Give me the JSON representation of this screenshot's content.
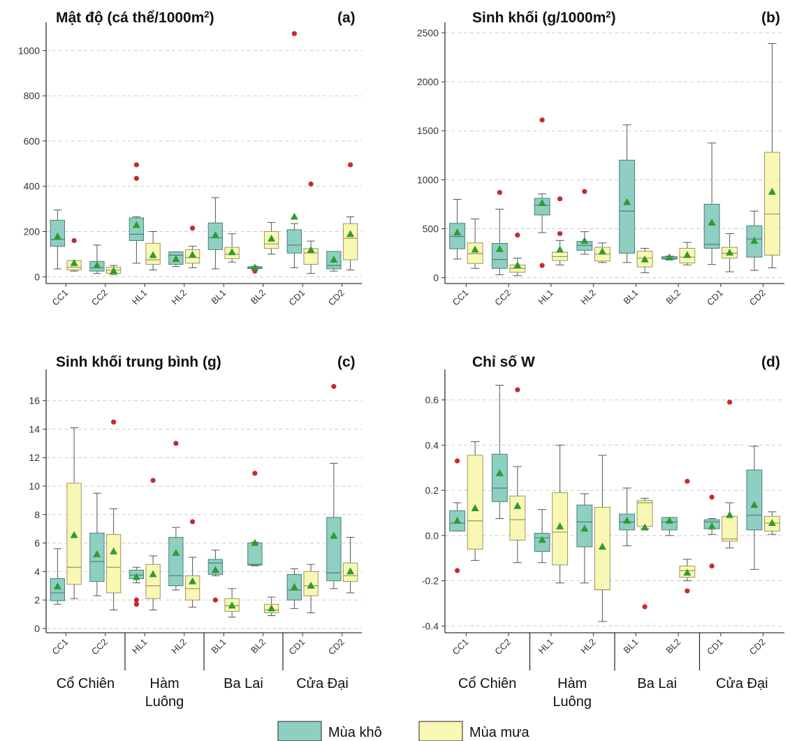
{
  "colors": {
    "dry_fill": "#8fcfc2",
    "dry_edge": "#4a7f78",
    "wet_fill": "#f8f7b4",
    "wet_edge": "#9a9660",
    "mean_marker": "#2e9b2e",
    "outlier": "#c9282d",
    "grid": "#cccccc",
    "axis": "#333333"
  },
  "legend": {
    "dry": "Mùa khô",
    "wet": "Mùa mưa"
  },
  "sites": [
    "CC1",
    "CC2",
    "HL1",
    "HL2",
    "BL1",
    "BL2",
    "CD1",
    "CD2"
  ],
  "groups": [
    {
      "line1": "Cổ Chiên",
      "line2": ""
    },
    {
      "line1": "Hàm",
      "line2": "Luông"
    },
    {
      "line1": "Ba Lai",
      "line2": ""
    },
    {
      "line1": "Cửa Đại",
      "line2": ""
    }
  ],
  "chart_data": [
    {
      "type": "box",
      "panel": "a",
      "title": "Mật độ (cá thể/1000m",
      "title_sup": "2",
      "title_tail": ")",
      "label": "(a)",
      "ylim": [
        -30,
        1100
      ],
      "yticks": [
        0,
        200,
        400,
        600,
        800,
        1000
      ],
      "grid": true,
      "show_groups": false,
      "series": [
        {
          "name": "Mùa khô",
          "boxes": [
            {
              "min": 35,
              "q1": 135,
              "median": 165,
              "q3": 250,
              "max": 295,
              "mean": 178,
              "outliers": []
            },
            {
              "min": 15,
              "q1": 25,
              "median": 40,
              "q3": 68,
              "max": 140,
              "mean": 50,
              "outliers": []
            },
            {
              "min": 60,
              "q1": 160,
              "median": 188,
              "q3": 260,
              "max": 265,
              "mean": 228,
              "outliers": [
                435,
                495
              ]
            },
            {
              "min": 45,
              "q1": 55,
              "median": 95,
              "q3": 110,
              "max": 110,
              "mean": 78,
              "outliers": []
            },
            {
              "min": 35,
              "q1": 120,
              "median": 172,
              "q3": 238,
              "max": 350,
              "mean": 183,
              "outliers": []
            },
            {
              "min": 35,
              "q1": 36,
              "median": 40,
              "q3": 44,
              "max": 46,
              "mean": 40,
              "outliers": [
                25
              ]
            },
            {
              "min": 40,
              "q1": 105,
              "median": 140,
              "q3": 208,
              "max": 235,
              "mean": 265,
              "outliers": [
                1075
              ]
            },
            {
              "min": 25,
              "q1": 35,
              "median": 50,
              "q3": 112,
              "max": 112,
              "mean": 75,
              "outliers": []
            }
          ]
        },
        {
          "name": "Mùa mưa",
          "boxes": [
            {
              "min": 25,
              "q1": 30,
              "median": 42,
              "q3": 72,
              "max": 72,
              "mean": 60,
              "outliers": [
                160
              ]
            },
            {
              "min": 10,
              "q1": 15,
              "median": 30,
              "q3": 42,
              "max": 50,
              "mean": 25,
              "outliers": []
            },
            {
              "min": 30,
              "q1": 55,
              "median": 75,
              "q3": 148,
              "max": 200,
              "mean": 95,
              "outliers": []
            },
            {
              "min": 40,
              "q1": 60,
              "median": 85,
              "q3": 120,
              "max": 135,
              "mean": 97,
              "outliers": [
                215
              ]
            },
            {
              "min": 65,
              "q1": 80,
              "median": 100,
              "q3": 130,
              "max": 190,
              "mean": 108,
              "outliers": []
            },
            {
              "min": 100,
              "q1": 125,
              "median": 145,
              "q3": 200,
              "max": 240,
              "mean": 168,
              "outliers": []
            },
            {
              "min": 15,
              "q1": 55,
              "median": 105,
              "q3": 125,
              "max": 158,
              "mean": 118,
              "outliers": [
                410
              ]
            },
            {
              "min": 30,
              "q1": 75,
              "median": 170,
              "q3": 235,
              "max": 265,
              "mean": 188,
              "outliers": [
                495
              ]
            }
          ]
        }
      ]
    },
    {
      "type": "box",
      "panel": "b",
      "title": "Sinh khối (g/1000m",
      "title_sup": "2",
      "title_tail": ")",
      "label": "(b)",
      "ylim": [
        -60,
        2550
      ],
      "yticks": [
        0,
        500,
        1000,
        1500,
        2000,
        2500
      ],
      "grid": true,
      "show_groups": false,
      "series": [
        {
          "name": "Mùa khô",
          "boxes": [
            {
              "min": 190,
              "q1": 295,
              "median": 420,
              "q3": 555,
              "max": 800,
              "mean": 460,
              "outliers": []
            },
            {
              "min": 30,
              "q1": 95,
              "median": 185,
              "q3": 350,
              "max": 700,
              "mean": 290,
              "outliers": [
                870
              ]
            },
            {
              "min": 460,
              "q1": 640,
              "median": 740,
              "q3": 810,
              "max": 855,
              "mean": 760,
              "outliers": [
                1610,
                125
              ]
            },
            {
              "min": 240,
              "q1": 280,
              "median": 330,
              "q3": 370,
              "max": 470,
              "mean": 375,
              "outliers": [
                880
              ]
            },
            {
              "min": 155,
              "q1": 250,
              "median": 680,
              "q3": 1200,
              "max": 1560,
              "mean": 770,
              "outliers": []
            },
            {
              "min": 185,
              "q1": 190,
              "median": 200,
              "q3": 215,
              "max": 220,
              "mean": 205,
              "outliers": []
            },
            {
              "min": 135,
              "q1": 300,
              "median": 340,
              "q3": 750,
              "max": 1375,
              "mean": 560,
              "outliers": []
            },
            {
              "min": 75,
              "q1": 210,
              "median": 395,
              "q3": 530,
              "max": 680,
              "mean": 375,
              "outliers": []
            }
          ]
        },
        {
          "name": "Mùa mưa",
          "boxes": [
            {
              "min": 95,
              "q1": 145,
              "median": 245,
              "q3": 355,
              "max": 600,
              "mean": 285,
              "outliers": []
            },
            {
              "min": 20,
              "q1": 55,
              "median": 95,
              "q3": 130,
              "max": 200,
              "mean": 125,
              "outliers": [
                435
              ]
            },
            {
              "min": 130,
              "q1": 175,
              "median": 215,
              "q3": 260,
              "max": 380,
              "mean": 285,
              "outliers": [
                805,
                450
              ]
            },
            {
              "min": 155,
              "q1": 170,
              "median": 240,
              "q3": 310,
              "max": 355,
              "mean": 265,
              "outliers": []
            },
            {
              "min": 50,
              "q1": 110,
              "median": 200,
              "q3": 270,
              "max": 300,
              "mean": 185,
              "outliers": []
            },
            {
              "min": 130,
              "q1": 150,
              "median": 210,
              "q3": 300,
              "max": 360,
              "mean": 230,
              "outliers": []
            },
            {
              "min": 60,
              "q1": 200,
              "median": 250,
              "q3": 310,
              "max": 450,
              "mean": 255,
              "outliers": []
            },
            {
              "min": 100,
              "q1": 230,
              "median": 650,
              "q3": 1280,
              "max": 2390,
              "mean": 875,
              "outliers": []
            }
          ]
        }
      ]
    },
    {
      "type": "box",
      "panel": "c",
      "title": "Sinh khối trung bình (g)",
      "title_sup": "",
      "title_tail": "",
      "label": "(c)",
      "ylim": [
        -0.3,
        17.8
      ],
      "yticks": [
        0,
        2,
        4,
        6,
        8,
        10,
        12,
        14,
        16
      ],
      "grid": true,
      "show_groups": true,
      "series": [
        {
          "name": "Mùa khô",
          "boxes": [
            {
              "min": 1.7,
              "q1": 1.95,
              "median": 2.5,
              "q3": 3.5,
              "max": 5.6,
              "mean": 2.95,
              "outliers": []
            },
            {
              "min": 2.3,
              "q1": 3.3,
              "median": 4.7,
              "q3": 6.7,
              "max": 9.5,
              "mean": 5.2,
              "outliers": []
            },
            {
              "min": 3.2,
              "q1": 3.5,
              "median": 3.75,
              "q3": 4.1,
              "max": 4.3,
              "mean": 3.6,
              "outliers": [
                2.0,
                1.7
              ]
            },
            {
              "min": 2.7,
              "q1": 3.0,
              "median": 3.7,
              "q3": 6.4,
              "max": 7.1,
              "mean": 5.3,
              "outliers": [
                13.0
              ]
            },
            {
              "min": 3.7,
              "q1": 3.8,
              "median": 4.6,
              "q3": 4.85,
              "max": 5.5,
              "mean": 4.1,
              "outliers": [
                2.0
              ]
            },
            {
              "min": 4.4,
              "q1": 4.45,
              "median": 4.5,
              "q3": 6.0,
              "max": 6.05,
              "mean": 6.0,
              "outliers": [
                10.9
              ]
            },
            {
              "min": 1.4,
              "q1": 2.0,
              "median": 2.7,
              "q3": 3.8,
              "max": 4.2,
              "mean": 2.9,
              "outliers": []
            },
            {
              "min": 2.8,
              "q1": 3.35,
              "median": 3.9,
              "q3": 7.8,
              "max": 11.6,
              "mean": 6.5,
              "outliers": [
                17.0
              ]
            }
          ]
        },
        {
          "name": "Mùa mưa",
          "boxes": [
            {
              "min": 2.1,
              "q1": 3.1,
              "median": 4.3,
              "q3": 10.2,
              "max": 14.1,
              "mean": 6.55,
              "outliers": []
            },
            {
              "min": 1.3,
              "q1": 2.5,
              "median": 4.3,
              "q3": 6.6,
              "max": 8.4,
              "mean": 5.4,
              "outliers": [
                14.5
              ]
            },
            {
              "min": 1.3,
              "q1": 2.1,
              "median": 3.0,
              "q3": 4.5,
              "max": 5.1,
              "mean": 3.8,
              "outliers": [
                10.4
              ]
            },
            {
              "min": 1.5,
              "q1": 2.0,
              "median": 2.8,
              "q3": 3.7,
              "max": 5.0,
              "mean": 3.3,
              "outliers": [
                7.5
              ]
            },
            {
              "min": 0.8,
              "q1": 1.2,
              "median": 1.6,
              "q3": 2.1,
              "max": 2.8,
              "mean": 1.6,
              "outliers": []
            },
            {
              "min": 0.9,
              "q1": 1.1,
              "median": 1.3,
              "q3": 1.7,
              "max": 2.2,
              "mean": 1.4,
              "outliers": []
            },
            {
              "min": 1.1,
              "q1": 2.3,
              "median": 3.0,
              "q3": 4.0,
              "max": 4.5,
              "mean": 3.0,
              "outliers": []
            },
            {
              "min": 2.5,
              "q1": 3.3,
              "median": 3.7,
              "q3": 4.6,
              "max": 6.4,
              "mean": 4.0,
              "outliers": []
            }
          ]
        }
      ]
    },
    {
      "type": "box",
      "panel": "d",
      "title": "Chỉ số W",
      "title_sup": "",
      "title_tail": "",
      "label": "(d)",
      "ylim": [
        -0.43,
        0.71
      ],
      "yticks": [
        -0.4,
        -0.2,
        0.0,
        0.2,
        0.4,
        0.6
      ],
      "grid": true,
      "show_groups": true,
      "series": [
        {
          "name": "Mùa khô",
          "boxes": [
            {
              "min": 0.02,
              "q1": 0.02,
              "median": 0.055,
              "q3": 0.11,
              "max": 0.145,
              "mean": 0.065,
              "outliers": [
                0.33,
                -0.155
              ]
            },
            {
              "min": 0.075,
              "q1": 0.15,
              "median": 0.21,
              "q3": 0.36,
              "max": 0.665,
              "mean": 0.275,
              "outliers": []
            },
            {
              "min": -0.12,
              "q1": -0.07,
              "median": -0.01,
              "q3": 0.01,
              "max": 0.115,
              "mean": -0.02,
              "outliers": []
            },
            {
              "min": -0.21,
              "q1": -0.05,
              "median": 0.06,
              "q3": 0.135,
              "max": 0.185,
              "mean": 0.03,
              "outliers": []
            },
            {
              "min": -0.045,
              "q1": 0.025,
              "median": 0.06,
              "q3": 0.095,
              "max": 0.21,
              "mean": 0.065,
              "outliers": []
            },
            {
              "min": 0.0,
              "q1": 0.025,
              "median": 0.06,
              "q3": 0.08,
              "max": 0.08,
              "mean": 0.065,
              "outliers": []
            },
            {
              "min": 0.005,
              "q1": 0.03,
              "median": 0.06,
              "q3": 0.07,
              "max": 0.075,
              "mean": 0.04,
              "outliers": [
                0.17,
                -0.135
              ]
            },
            {
              "min": -0.15,
              "q1": 0.025,
              "median": 0.09,
              "q3": 0.29,
              "max": 0.395,
              "mean": 0.135,
              "outliers": []
            }
          ]
        },
        {
          "name": "Mùa mưa",
          "boxes": [
            {
              "min": -0.11,
              "q1": -0.06,
              "median": 0.065,
              "q3": 0.355,
              "max": 0.415,
              "mean": 0.12,
              "outliers": []
            },
            {
              "min": -0.12,
              "q1": -0.02,
              "median": 0.07,
              "q3": 0.175,
              "max": 0.305,
              "mean": 0.13,
              "outliers": [
                0.645
              ]
            },
            {
              "min": -0.21,
              "q1": -0.13,
              "median": 0.015,
              "q3": 0.19,
              "max": 0.4,
              "mean": 0.04,
              "outliers": []
            },
            {
              "min": -0.38,
              "q1": -0.24,
              "median": -0.24,
              "q3": 0.125,
              "max": 0.355,
              "mean": -0.05,
              "outliers": []
            },
            {
              "min": 0.03,
              "q1": 0.04,
              "median": 0.145,
              "q3": 0.155,
              "max": 0.165,
              "mean": 0.035,
              "outliers": [
                -0.315
              ]
            },
            {
              "min": -0.2,
              "q1": -0.185,
              "median": -0.155,
              "q3": -0.135,
              "max": -0.105,
              "mean": -0.165,
              "outliers": [
                0.24,
                -0.245
              ]
            },
            {
              "min": -0.055,
              "q1": -0.025,
              "median": -0.015,
              "q3": 0.085,
              "max": 0.145,
              "mean": 0.09,
              "outliers": [
                0.59
              ]
            },
            {
              "min": 0.005,
              "q1": 0.02,
              "median": 0.055,
              "q3": 0.085,
              "max": 0.105,
              "mean": 0.055,
              "outliers": []
            }
          ]
        }
      ]
    }
  ]
}
